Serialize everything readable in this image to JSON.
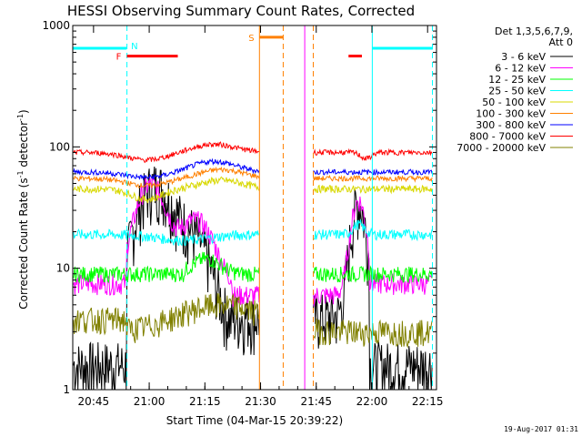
{
  "chart_data": {
    "type": "line",
    "title": "HESSI Observing Summary Count Rates, Corrected",
    "xlabel": "Start Time (04-Mar-15 20:39:22)",
    "ylabel_main": "Corrected Count Rate (s",
    "ylabel_sup1": "-1",
    "ylabel_mid": " detector",
    "ylabel_sup2": "-1",
    "ylabel_end": ")",
    "yscale": "log",
    "ylim": [
      1,
      1000
    ],
    "xlim_minutes": [
      0,
      98
    ],
    "x_ticks": [
      {
        "label": "20:45",
        "min": 5.6
      },
      {
        "label": "21:00",
        "min": 20.6
      },
      {
        "label": "21:15",
        "min": 35.6
      },
      {
        "label": "21:30",
        "min": 50.6
      },
      {
        "label": "21:45",
        "min": 65.6
      },
      {
        "label": "22:00",
        "min": 80.6
      },
      {
        "label": "22:15",
        "min": 95.6
      }
    ],
    "y_ticks": [
      {
        "label": "1",
        "val": 1
      },
      {
        "label": "10",
        "val": 10
      },
      {
        "label": "100",
        "val": 100
      },
      {
        "label": "1000",
        "val": 1000
      }
    ],
    "legend_header": [
      "Det 1,3,5,6,7,9,",
      "Att 0"
    ],
    "legend_position": "right",
    "series": [
      {
        "name": "3 - 6 keV",
        "color": "#000000"
      },
      {
        "name": "6 - 12 keV",
        "color": "#ff00ff"
      },
      {
        "name": "12 - 25 keV",
        "color": "#00ff00"
      },
      {
        "name": "25 - 50 keV",
        "color": "#00ffff"
      },
      {
        "name": "50 - 100 keV",
        "color": "#d8d800"
      },
      {
        "name": "100 - 300 keV",
        "color": "#ff8000"
      },
      {
        "name": "300 - 800 keV",
        "color": "#0000ff"
      },
      {
        "name": "800 - 7000 keV",
        "color": "#ff0000"
      },
      {
        "name": "7000 - 20000 keV",
        "color": "#808000"
      }
    ],
    "data_gaps_minutes": [
      [
        50.3,
        64.8
      ]
    ],
    "flags": [
      {
        "label": "N",
        "color": "#00ffff",
        "segments": [
          [
            0,
            14.5
          ],
          [
            80.7,
            97
          ]
        ],
        "level": 650
      },
      {
        "label": "F",
        "color": "#ff0000",
        "segments": [
          [
            14.6,
            28.3
          ],
          [
            74.3,
            77.9
          ]
        ],
        "level": 560
      },
      {
        "label": "S",
        "color": "#ff8000",
        "segments": [
          [
            50.3,
            56.7
          ]
        ],
        "level": 800
      }
    ],
    "markers": [
      {
        "min": 14.6,
        "color": "#00ffff",
        "style": "dashed"
      },
      {
        "min": 50.3,
        "color": "#ff8000",
        "style": "solid"
      },
      {
        "min": 56.7,
        "color": "#ff8000",
        "style": "dashed"
      },
      {
        "min": 62.5,
        "color": "#ff00ff",
        "style": "solid"
      },
      {
        "min": 64.8,
        "color": "#ff8000",
        "style": "dashed"
      },
      {
        "min": 80.7,
        "color": "#00ffff",
        "style": "solid"
      },
      {
        "min": 96.9,
        "color": "#00ffff",
        "style": "dashed"
      }
    ]
  },
  "footer_date": "19-Aug-2017 01:31"
}
